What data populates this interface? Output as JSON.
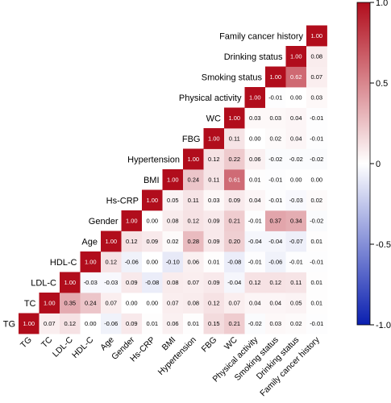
{
  "chart_data": {
    "type": "heatmap",
    "variables": [
      "TG",
      "TC",
      "LDL-C",
      "HDL-C",
      "Age",
      "Gender",
      "Hs-CRP",
      "BMI",
      "Hypertension",
      "FBG",
      "WC",
      "Physical activity",
      "Smoking status",
      "Drinking status",
      "Family cancer history"
    ],
    "matrix": [
      [
        "1.00",
        "0.07",
        "0.12",
        "0.00",
        "-0.06",
        "0.09",
        "0.01",
        "0.06",
        "0.01",
        "0.15",
        "0.21",
        "-0.02",
        "0.03",
        "0.02",
        "-0.01"
      ],
      [
        "1.00",
        "0.35",
        "0.24",
        "0.07",
        "0.00",
        "0.00",
        "0.07",
        "0.08",
        "0.12",
        "0.07",
        "0.04",
        "0.04",
        "0.05",
        "0.01"
      ],
      [
        "1.00",
        "-0.03",
        "-0.03",
        "0.09",
        "-0.08",
        "0.08",
        "0.07",
        "0.09",
        "-0.04",
        "0.12",
        "0.12",
        "0.11",
        "0.01"
      ],
      [
        "1.00",
        "0.12",
        "-0.06",
        "0.00",
        "-0.10",
        "0.06",
        "0.01",
        "-0.08",
        "-0.01",
        "-0.06",
        "-0.01",
        "-0.01"
      ],
      [
        "1.00",
        "0.12",
        "0.09",
        "0.02",
        "0.28",
        "0.09",
        "0.20",
        "-0.04",
        "-0.04",
        "-0.07",
        "0.01"
      ],
      [
        "1.00",
        "0.00",
        "0.08",
        "0.12",
        "0.09",
        "0.21",
        "-0.01",
        "0.37",
        "0.34",
        "-0.02"
      ],
      [
        "1.00",
        "0.05",
        "0.11",
        "0.03",
        "0.09",
        "0.04",
        "-0.01",
        "-0.03",
        "0.02"
      ],
      [
        "1.00",
        "0.24",
        "0.11",
        "0.61",
        "0.01",
        "-0.01",
        "0.00",
        "0.00"
      ],
      [
        "1.00",
        "0.12",
        "0.22",
        "0.06",
        "-0.02",
        "-0.02",
        "-0.02"
      ],
      [
        "1.00",
        "0.11",
        "0.00",
        "0.02",
        "0.04",
        "-0.01"
      ],
      [
        "1.00",
        "0.03",
        "0.03",
        "0.04",
        "-0.01"
      ],
      [
        "1.00",
        "-0.01",
        "0.00",
        "0.03"
      ],
      [
        "1.00",
        "0.62",
        "0.07"
      ],
      [
        "1.00",
        "0.08"
      ],
      [
        "1.00"
      ]
    ],
    "colorbar": {
      "range": [
        -1.0,
        1.0
      ],
      "ticks": [
        "-1.0",
        "-0.5",
        "0",
        "0.5",
        "1.0"
      ],
      "colors": {
        "low": "#0a1fb0",
        "mid": "#ffffff",
        "high": "#b10d1c"
      }
    }
  }
}
